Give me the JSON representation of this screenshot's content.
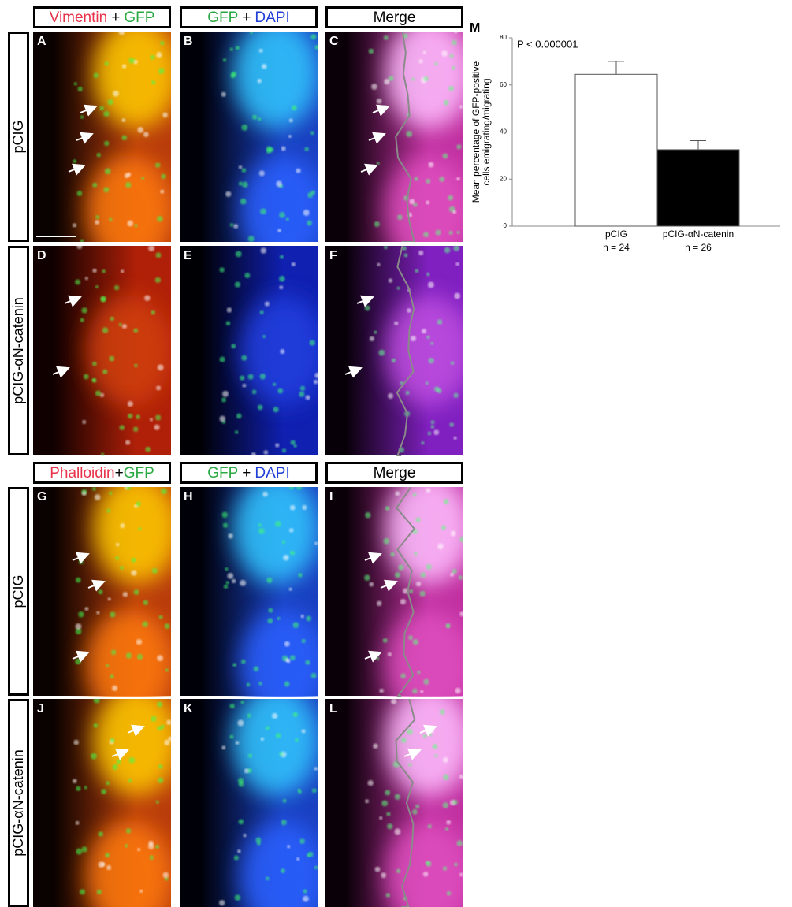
{
  "figure": {
    "header_rows": [
      [
        [
          "Vimentin",
          "+",
          "GFP"
        ],
        [
          "GFP",
          "+",
          "DAPI"
        ],
        [
          "Merge"
        ]
      ],
      [
        [
          "Phalloidin",
          "+",
          "GFP"
        ],
        [
          "GFP",
          "+",
          "DAPI"
        ],
        [
          "Merge"
        ]
      ]
    ],
    "row_labels": [
      "pCIG",
      "pCIG-αN-catenin",
      "pCIG",
      "pCIG-αN-catenin"
    ],
    "panel_letters": [
      [
        "A",
        "B",
        "C"
      ],
      [
        "D",
        "E",
        "F"
      ],
      [
        "G",
        "H",
        "I"
      ],
      [
        "J",
        "K",
        "L"
      ]
    ]
  },
  "chart_data": {
    "type": "bar",
    "panel_letter": "M",
    "annotation": "P < 0.000001",
    "y_label": [
      "Mean percentage of GFP-positive",
      "cells emigrating/migrating"
    ],
    "categories": [
      "pCIG",
      "pCIG-αN-catenin"
    ],
    "sample_sizes": [
      "n = 24",
      "n = 26"
    ],
    "values": [
      64.5,
      32.5
    ],
    "errors": [
      5.5,
      3.8
    ],
    "colors": [
      "#ffffff",
      "#000000"
    ],
    "ylim": [
      0,
      80
    ],
    "yticks": [
      0,
      20,
      40,
      60,
      80
    ]
  }
}
